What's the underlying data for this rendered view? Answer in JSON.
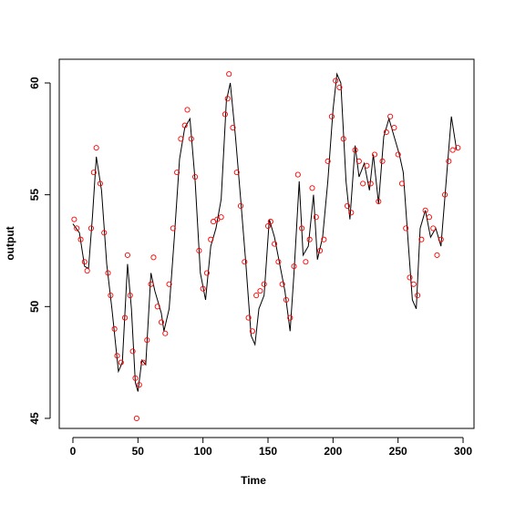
{
  "chart_data": {
    "type": "line",
    "xlabel": "Time",
    "ylabel": "output",
    "xlim": [
      -10.5,
      308.4
    ],
    "ylim": [
      44.55,
      61.06
    ],
    "xticks": [
      0,
      50,
      100,
      150,
      200,
      250,
      300
    ],
    "yticks": [
      45,
      50,
      55,
      60
    ],
    "series": [
      {
        "style": "line",
        "color": "#000000",
        "x": [
          0,
          5,
          9,
          12,
          15,
          18,
          22,
          26,
          30,
          35,
          38,
          42,
          45,
          48,
          50,
          53,
          56,
          60,
          63,
          68,
          70,
          74,
          78,
          82,
          86,
          90,
          94,
          98,
          102,
          106,
          110,
          114,
          118,
          121,
          125,
          129,
          133,
          137,
          140,
          143,
          147,
          151,
          155,
          159,
          163,
          167,
          170,
          174,
          177,
          181,
          185,
          188,
          192,
          196,
          200,
          203,
          206,
          210,
          213,
          217,
          220,
          224,
          228,
          231,
          235,
          239,
          243,
          247,
          251,
          254,
          258,
          261,
          264,
          267,
          271,
          275,
          279,
          283,
          287,
          291,
          295
        ],
        "values": [
          53.7,
          53.3,
          51.8,
          51.7,
          54.0,
          56.7,
          55.2,
          51.9,
          49.9,
          47.1,
          47.5,
          51.9,
          49.9,
          46.6,
          46.2,
          47.6,
          47.4,
          51.5,
          50.7,
          49.7,
          48.9,
          49.9,
          53.1,
          56.6,
          58.0,
          58.4,
          55.6,
          51.5,
          50.3,
          52.7,
          53.5,
          54.8,
          59.2,
          60.0,
          57.6,
          54.8,
          51.9,
          48.7,
          48.3,
          49.9,
          50.5,
          53.9,
          53.1,
          51.9,
          50.7,
          48.9,
          51.5,
          55.6,
          52.3,
          52.7,
          55.0,
          52.1,
          53.1,
          55.6,
          58.8,
          60.4,
          60.0,
          55.6,
          53.9,
          57.2,
          55.8,
          56.4,
          55.2,
          56.8,
          54.6,
          57.6,
          58.4,
          57.6,
          56.8,
          56.0,
          52.7,
          50.3,
          49.9,
          53.5,
          54.3,
          53.1,
          53.5,
          52.7,
          55.6,
          58.5,
          57.0
        ]
      },
      {
        "style": "points",
        "color": "#ff0000",
        "x": [
          1,
          3,
          6,
          9,
          11,
          14,
          16,
          18,
          21,
          24,
          27,
          29,
          32,
          34,
          37,
          40,
          42,
          44,
          46,
          48,
          49,
          51,
          54,
          57,
          60,
          62,
          65,
          68,
          71,
          74,
          77,
          80,
          83,
          86,
          88,
          91,
          94,
          97,
          100,
          103,
          106,
          108,
          111,
          114,
          117,
          119,
          120,
          123,
          126,
          129,
          132,
          135,
          138,
          141,
          144,
          147,
          150,
          152,
          155,
          158,
          161,
          164,
          167,
          170,
          173,
          176,
          179,
          182,
          184,
          187,
          190,
          193,
          196,
          199,
          202,
          205,
          208,
          211,
          214,
          217,
          220,
          223,
          226,
          229,
          232,
          235,
          238,
          241,
          244,
          247,
          250,
          253,
          256,
          259,
          262,
          265,
          268,
          271,
          274,
          277,
          280,
          283,
          286,
          289,
          292,
          296
        ],
        "values": [
          53.9,
          53.5,
          53.0,
          52.0,
          51.6,
          53.5,
          56.0,
          57.1,
          55.5,
          53.3,
          51.5,
          50.5,
          49.0,
          47.8,
          47.5,
          49.5,
          52.3,
          50.5,
          48.0,
          46.8,
          45.0,
          46.5,
          47.5,
          48.5,
          51.0,
          52.2,
          50.0,
          49.3,
          48.8,
          51.0,
          53.5,
          56.0,
          57.5,
          58.1,
          58.8,
          57.5,
          55.8,
          52.5,
          50.8,
          51.5,
          53.0,
          53.8,
          53.9,
          54.0,
          58.6,
          59.3,
          60.4,
          58.0,
          56.0,
          54.5,
          52.0,
          49.5,
          48.9,
          50.5,
          50.7,
          51.0,
          53.6,
          53.8,
          52.8,
          52.0,
          51.0,
          50.3,
          49.5,
          51.8,
          55.9,
          53.5,
          52.0,
          53.0,
          55.3,
          54.0,
          52.5,
          53.0,
          56.5,
          58.5,
          60.1,
          59.8,
          57.5,
          54.5,
          54.2,
          57.0,
          56.5,
          55.5,
          56.3,
          55.5,
          56.8,
          54.7,
          56.5,
          57.8,
          58.5,
          58.0,
          56.8,
          55.5,
          53.5,
          51.3,
          51.0,
          50.5,
          53.0,
          54.3,
          54.0,
          53.5,
          52.3,
          53.0,
          55.0,
          56.5,
          57.0,
          57.1
        ]
      }
    ]
  }
}
